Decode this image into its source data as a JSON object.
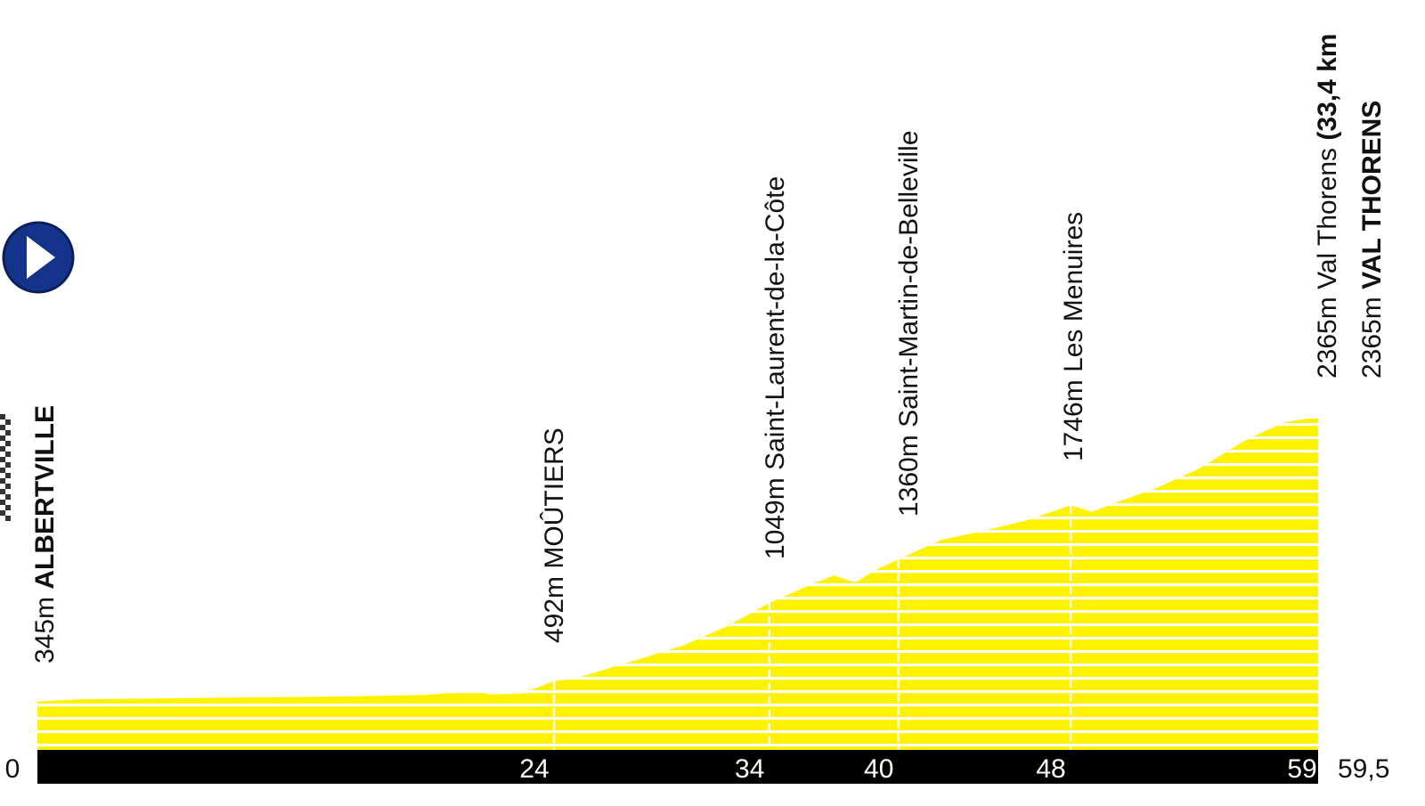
{
  "chart_data": {
    "type": "area",
    "title": "",
    "xlabel": "",
    "ylabel": "",
    "colors": {
      "profile": "#fff200",
      "stripes": "#ffffff",
      "axis": "#000000",
      "marker": "#ffffff",
      "start_icon": "#14338a"
    },
    "profile": [
      [
        0,
        345
      ],
      [
        2,
        362
      ],
      [
        6,
        368
      ],
      [
        10,
        375
      ],
      [
        14,
        381
      ],
      [
        18,
        392
      ],
      [
        20.5,
        420
      ],
      [
        21,
        397
      ],
      [
        22.5,
        401
      ],
      [
        24,
        492
      ],
      [
        25,
        510
      ],
      [
        26,
        557
      ],
      [
        28,
        650
      ],
      [
        30,
        745
      ],
      [
        32,
        880
      ],
      [
        34,
        1049
      ],
      [
        36,
        1185
      ],
      [
        37,
        1245
      ],
      [
        38,
        1195
      ],
      [
        39,
        1290
      ],
      [
        40,
        1360
      ],
      [
        42,
        1500
      ],
      [
        44,
        1565
      ],
      [
        46,
        1640
      ],
      [
        48,
        1746
      ],
      [
        49,
        1700
      ],
      [
        50,
        1760
      ],
      [
        52,
        1870
      ],
      [
        54,
        2010
      ],
      [
        56,
        2200
      ],
      [
        57,
        2275
      ],
      [
        58,
        2340
      ],
      [
        59,
        2365
      ],
      [
        59.5,
        2365
      ]
    ],
    "y_range": [
      0,
      2800
    ],
    "x_range": [
      0,
      59.5
    ],
    "axis_ticks": [
      {
        "x": 0,
        "label": "0"
      },
      {
        "x": 24,
        "label": "24"
      },
      {
        "x": 34,
        "label": "34"
      },
      {
        "x": 40,
        "label": "40"
      },
      {
        "x": 48,
        "label": "48"
      },
      {
        "x": 59,
        "label": "59"
      },
      {
        "x": 59.5,
        "label": "59,5"
      }
    ],
    "waypoints": [
      {
        "x": 0,
        "altitude": "345m",
        "name": "ALBERTVILLE",
        "bold": true,
        "start": true
      },
      {
        "x": 24,
        "altitude": "492m",
        "name": "MOÛTIERS",
        "bold": false
      },
      {
        "x": 34,
        "altitude": "1049m",
        "name": "Saint-Laurent-de-la-Côte",
        "bold": false
      },
      {
        "x": 40,
        "altitude": "1360m",
        "name": "Saint-Martin-de-Belleville",
        "bold": false
      },
      {
        "x": 48,
        "altitude": "1746m",
        "name": "Les Menuires",
        "bold": false
      },
      {
        "x": 59,
        "altitude": "2365m",
        "name": "Val Thorens",
        "climb_info": "(33,4 km",
        "bold": false
      },
      {
        "x": 59.5,
        "altitude": "2365m",
        "name": "VAL THORENS",
        "bold": true,
        "finish": true
      }
    ]
  }
}
